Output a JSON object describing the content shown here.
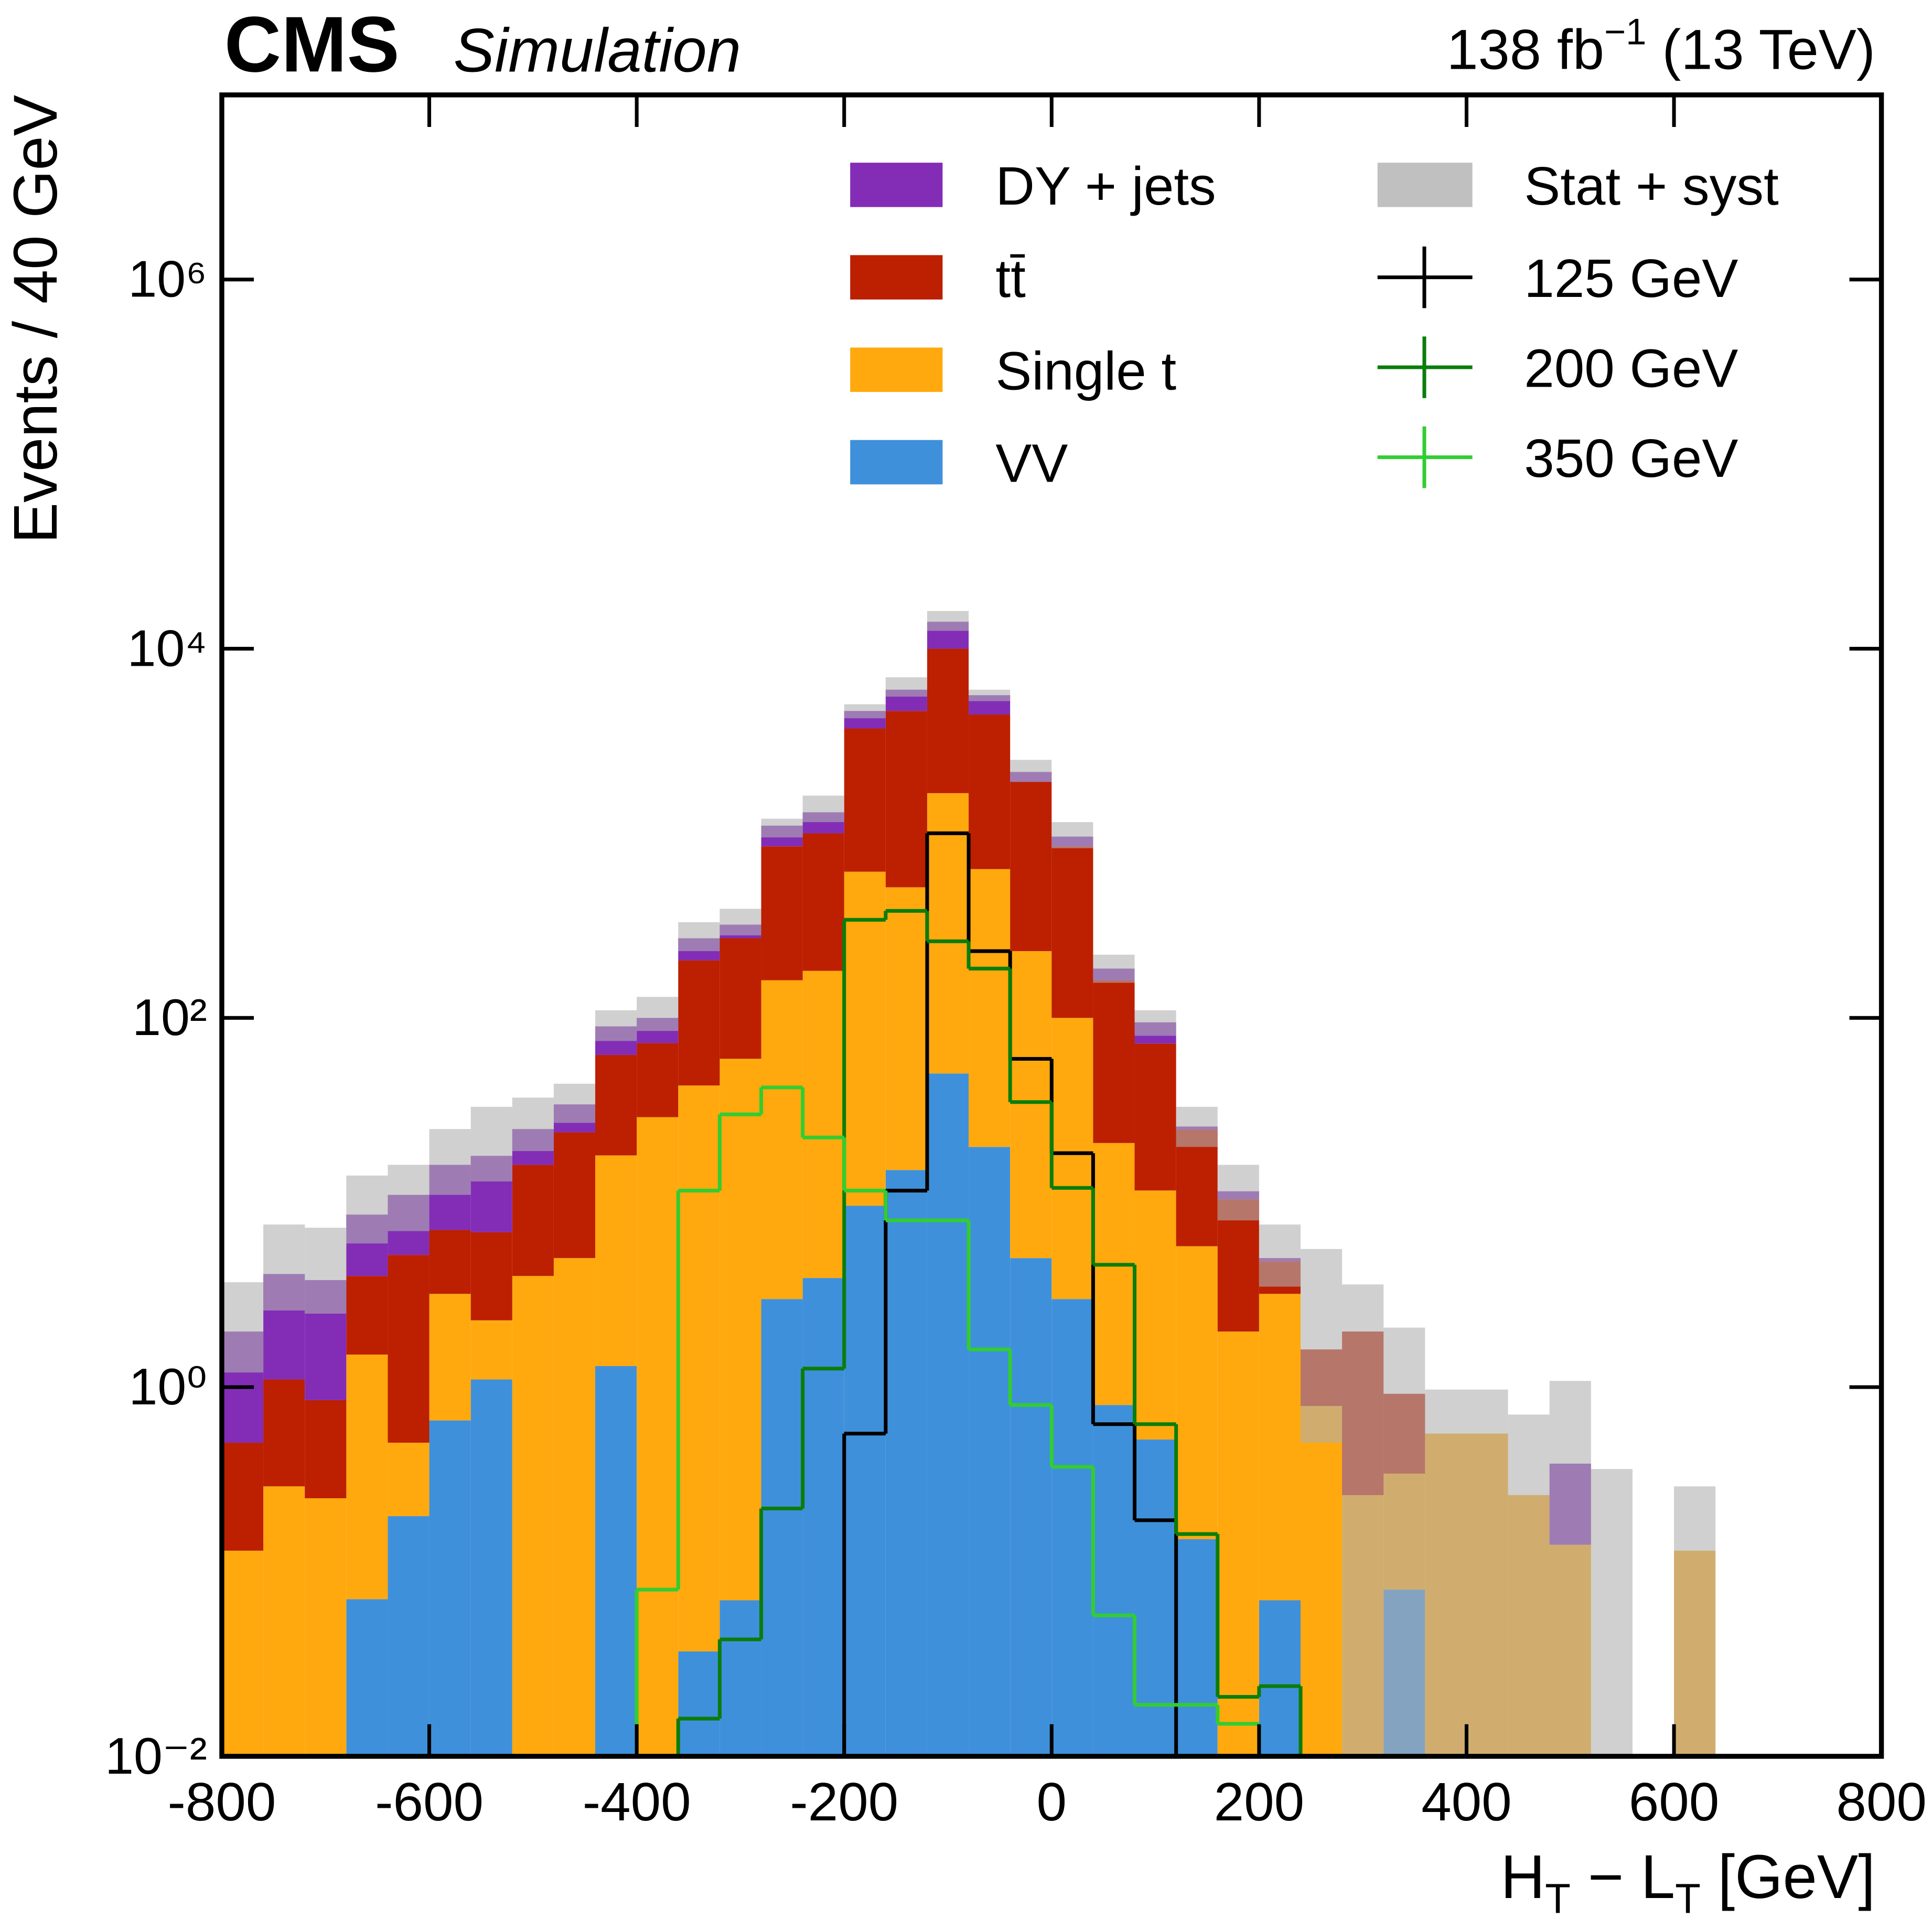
{
  "chart_data": {
    "type": "stacked_histogram",
    "experiment": "CMS",
    "subtitle": "Simulation",
    "lumi": [
      "138 fb",
      "−1",
      " (13 TeV)"
    ],
    "xlabel": [
      "H",
      "T",
      " − L",
      "T",
      " [GeV]"
    ],
    "ylabel": "Events / 40 GeV",
    "log_y": true,
    "xlim": [
      -800,
      800
    ],
    "ylim": [
      0.01,
      10000000
    ],
    "xticks": [
      -800,
      -600,
      -400,
      -200,
      0,
      200,
      400,
      600,
      800
    ],
    "yticks": [
      {
        "value": 0.01,
        "label": "10⁻²"
      },
      {
        "value": 1,
        "label": "10⁰"
      },
      {
        "value": 100,
        "label": "10²"
      },
      {
        "value": 10000,
        "label": "10⁴"
      },
      {
        "value": 1000000,
        "label": "10⁶"
      }
    ],
    "bins": [
      -800,
      -760,
      -720,
      -680,
      -640,
      -600,
      -560,
      -520,
      -480,
      -440,
      -400,
      -360,
      -320,
      -280,
      -240,
      -200,
      -160,
      -120,
      -80,
      -40,
      0,
      40,
      80,
      120,
      160,
      200,
      240,
      280,
      320,
      360,
      400,
      440,
      480,
      520,
      560,
      600,
      640
    ],
    "series": [
      {
        "name": "VV",
        "color": "#3f90da",
        "values": [
          0,
          0,
          0,
          0.071,
          0.2,
          0.66,
          1.1,
          0,
          0,
          1.3,
          0,
          0.037,
          0.07,
          3,
          3.9,
          9.6,
          15,
          50,
          20,
          5,
          3,
          0.8,
          0.52,
          0.15,
          0,
          0.07,
          0,
          0,
          0.08,
          0,
          0,
          0,
          0,
          0,
          0,
          0
        ]
      },
      {
        "name": "Single t",
        "color": "#ffa90e",
        "values": [
          0.13,
          0.29,
          0.25,
          1.43,
          0.3,
          2.54,
          1.2,
          4,
          5,
          16.7,
          29,
          43,
          60,
          157,
          176,
          610,
          495,
          1600,
          620,
          225,
          97,
          20.2,
          11.1,
          5.65,
          2,
          3.13,
          0.79,
          0.26,
          0.26,
          0.56,
          0.56,
          0.26,
          0.14,
          0,
          0,
          0.13
        ]
      },
      {
        "name": "tt̄",
        "color": "#bd1f01",
        "values": [
          0.37,
          0.81,
          0.6,
          2.5,
          4.7,
          3.9,
          4.6,
          12,
          19,
          45,
          44,
          162,
          210,
          690,
          820,
          3080,
          4090,
          8350,
          3760,
          1670,
          750,
          139,
          61,
          19,
          8.4,
          1.6,
          0.81,
          1.74,
          0.58,
          0,
          0,
          0,
          0,
          0,
          0,
          0
        ]
      },
      {
        "name": "DY + jets",
        "color": "#832db6",
        "values": [
          1.5,
          3,
          2.95,
          4.6,
          5.8,
          8.9,
          11,
          9,
          10,
          27,
          27,
          65,
          50,
          250,
          300,
          900,
          1400,
          4000,
          1200,
          250,
          110,
          25,
          22,
          1,
          1.1,
          0.2,
          0,
          0,
          0,
          0,
          0,
          0,
          0.245,
          0,
          0,
          0
        ]
      }
    ],
    "band": {
      "name": "Stat + syst",
      "color": "#b0b0b0",
      "low": [
        1.2,
        2.6,
        2.5,
        6,
        7,
        11,
        13,
        19,
        27,
        75,
        85,
        230,
        280,
        950,
        1150,
        4200,
        5500,
        12500,
        5200,
        1900,
        830,
        155,
        80,
        20,
        8,
        3.5,
        0.5,
        0.01,
        0.01,
        0.01,
        0.01,
        0.01,
        0.01,
        0.01,
        null,
        0.01
      ],
      "high": [
        3.7,
        7.6,
        7.3,
        14,
        16,
        25,
        33,
        37,
        44,
        110,
        130,
        330,
        390,
        1200,
        1600,
        5000,
        7000,
        16000,
        6000,
        2500,
        1150,
        220,
        110,
        33,
        16,
        7.6,
        5.6,
        3.6,
        2.1,
        0.97,
        0.97,
        0.71,
        1.08,
        0.36,
        null,
        0.29
      ]
    },
    "signals": [
      {
        "name": "125 GeV",
        "color": "#000000",
        "values": [
          0,
          0,
          0,
          0,
          0,
          0,
          0,
          0,
          0,
          0,
          0,
          0,
          0,
          0,
          0,
          0.56,
          11.6,
          1000,
          230,
          60,
          18.5,
          0.63,
          0.19,
          0,
          0,
          0,
          0,
          0,
          0,
          0,
          0,
          0,
          0,
          0,
          0,
          0
        ]
      },
      {
        "name": "200 GeV",
        "color": "#0a7d0a",
        "values": [
          0,
          0,
          0,
          0,
          0,
          0,
          0,
          0,
          0,
          0,
          0,
          0.016,
          0.043,
          0.22,
          1.26,
          340,
          380,
          260,
          185,
          35,
          12,
          4.6,
          0.63,
          0.16,
          0.021,
          0.024,
          0,
          0,
          0,
          0,
          0,
          0,
          0,
          0,
          0,
          0
        ]
      },
      {
        "name": "350 GeV",
        "color": "#32cd32",
        "values": [
          0,
          0,
          0,
          0,
          0,
          0,
          0,
          0,
          0,
          0,
          0.08,
          11.6,
          30,
          42,
          22.5,
          11.6,
          8,
          8,
          1.6,
          0.8,
          0.37,
          0.058,
          0.019,
          0.019,
          0.015,
          0,
          0,
          0,
          0,
          0,
          0,
          0,
          0,
          0,
          0,
          0
        ]
      }
    ]
  }
}
